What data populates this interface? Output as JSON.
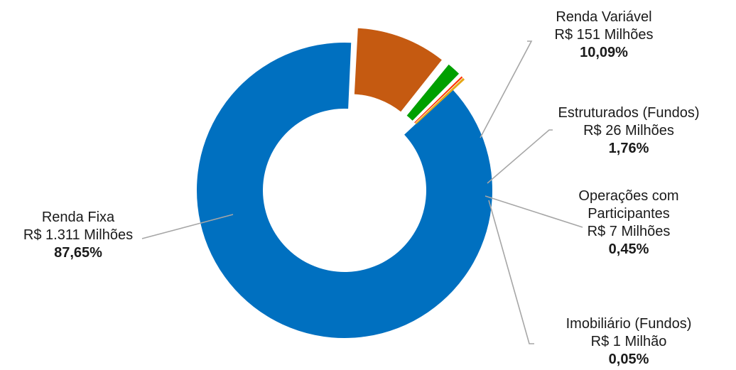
{
  "chart_data": {
    "type": "pie",
    "variant": "donut",
    "title": "",
    "exploded": true,
    "slices": [
      {
        "name": "Renda Fixa",
        "amount_label": "R$ 1.311 Milhões",
        "percent_label": "87,65%",
        "value": 87.65,
        "color": "#0070C0"
      },
      {
        "name": "Renda Variável",
        "amount_label": "R$ 151 Milhões",
        "percent_label": "10,09%",
        "value": 10.09,
        "color": "#C55A11"
      },
      {
        "name": "Estruturados (Fundos)",
        "amount_label": "R$ 26 Milhões",
        "percent_label": "1,76%",
        "value": 1.76,
        "color": "#00A000"
      },
      {
        "name": "Operações com Participantes",
        "name_lines": [
          "Operações com",
          "Participantes"
        ],
        "amount_label": "R$ 7 Milhões",
        "percent_label": "0,45%",
        "value": 0.45,
        "color": "#FF3300"
      },
      {
        "name": "Imobiliário (Fundos)",
        "amount_label": "R$ 1 Milhão",
        "percent_label": "0,05%",
        "value": 0.05,
        "color": "#E6A817"
      }
    ],
    "legend": "none"
  }
}
